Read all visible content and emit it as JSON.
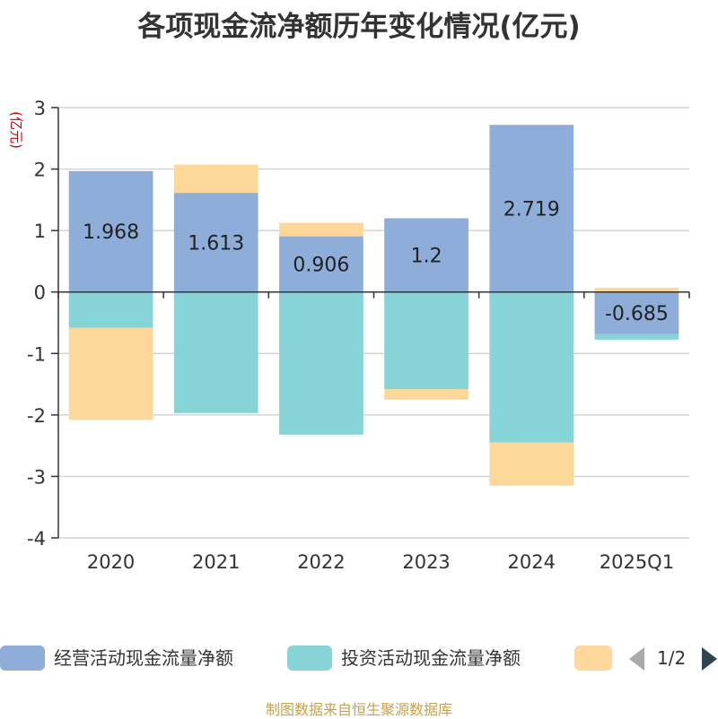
{
  "chart_data": {
    "type": "bar",
    "stacked": true,
    "title": "各项现金流净额历年变化情况(亿元)",
    "ylabel": "(亿元)",
    "categories": [
      "2020",
      "2021",
      "2022",
      "2023",
      "2024",
      "2025Q1"
    ],
    "ylim": [
      -4,
      3
    ],
    "yticks": [
      3,
      2,
      1,
      0,
      -1,
      -2,
      -3,
      -4
    ],
    "grid": true,
    "legend_position": "bottom",
    "series": [
      {
        "name": "经营活动现金流量净额",
        "color": "#8eadd9",
        "values": [
          1.968,
          1.613,
          0.906,
          1.2,
          2.719,
          -0.685
        ],
        "labels": [
          "1.968",
          "1.613",
          "0.906",
          "1.2",
          "2.719",
          "-0.685"
        ]
      },
      {
        "name": "投资活动现金流量净额",
        "color": "#86d4d7",
        "values": [
          -0.58,
          -1.97,
          -2.32,
          -1.58,
          -2.45,
          -0.09
        ]
      },
      {
        "name": "",
        "color": "#fdd89a",
        "values": [
          -1.5,
          0.46,
          0.22,
          -0.17,
          -0.7,
          0.07
        ]
      }
    ]
  },
  "legend": {
    "items": [
      "经营活动现金流量净额",
      "投资活动现金流量净额",
      ""
    ],
    "page": "1/2"
  },
  "source": "制图数据来自恒生聚源数据库"
}
